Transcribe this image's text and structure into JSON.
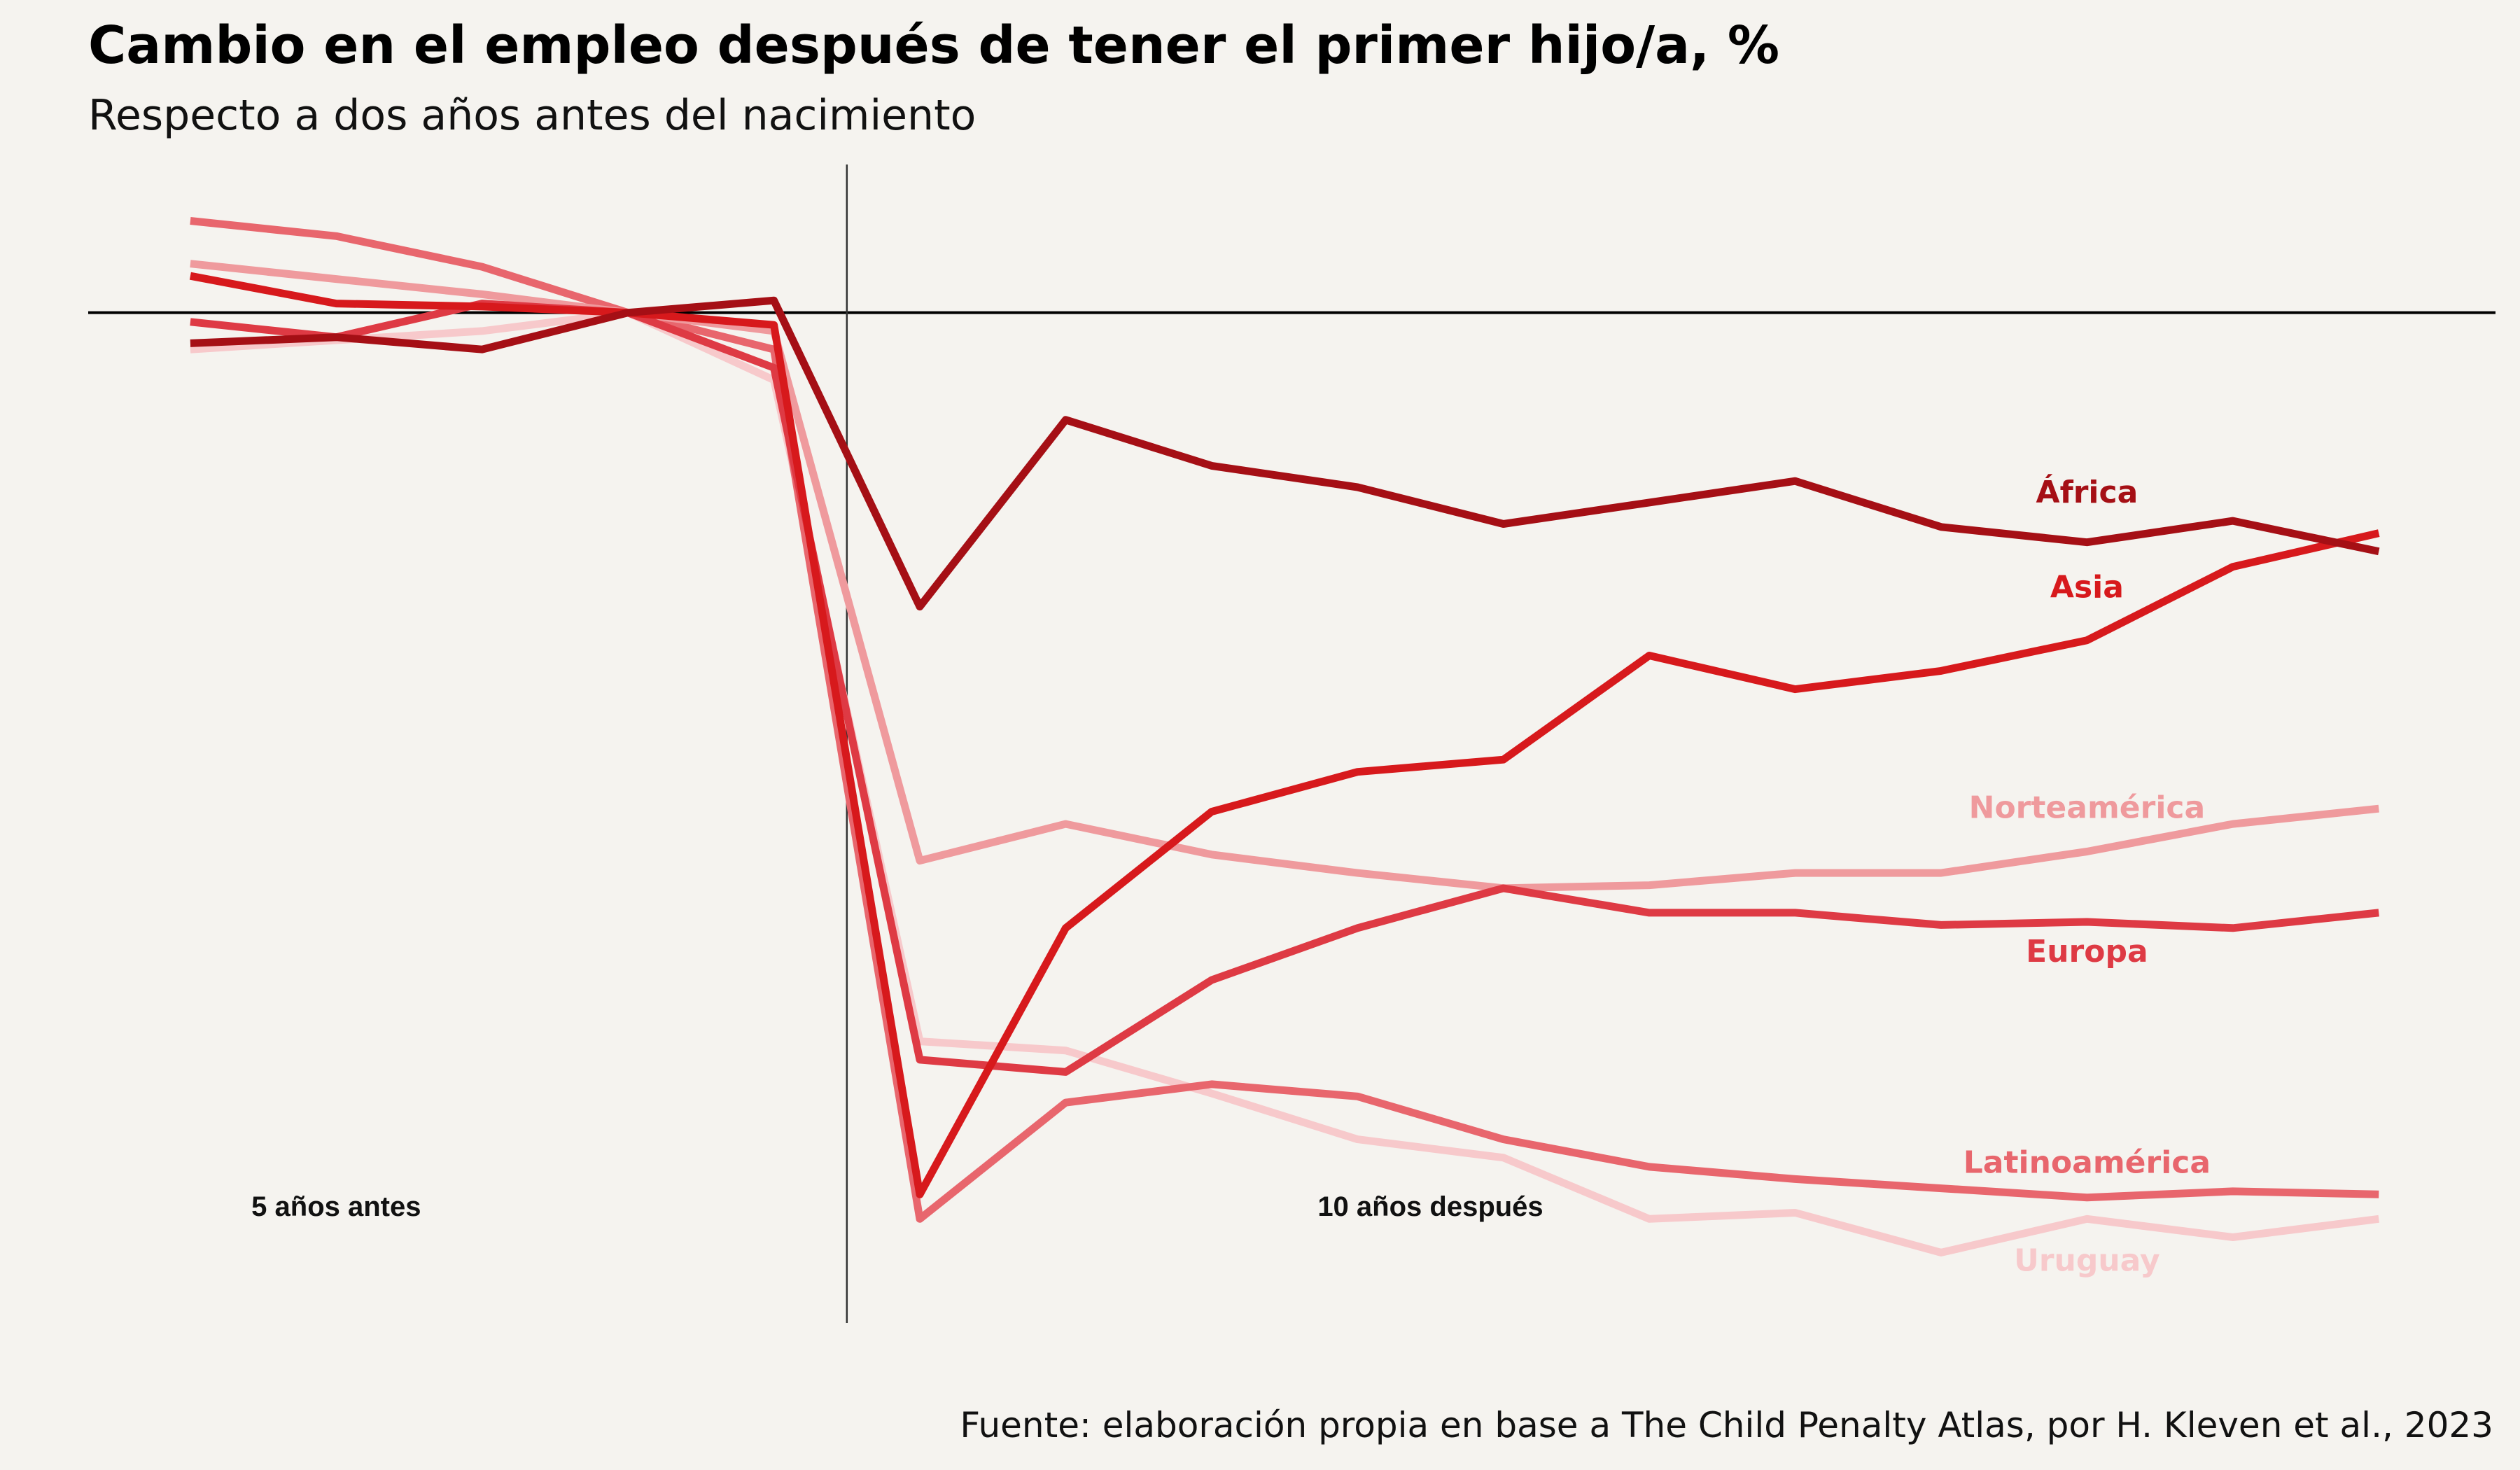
{
  "chart_data": {
    "type": "line",
    "title": "Cambio en el empleo después de tener el primer hijo/a, %",
    "subtitle": "Respecto a dos años antes del nacimiento",
    "source": "Fuente: elaboración propia en base a The Child Penalty Atlas, por H. Kleven et al., 2023",
    "x": [
      -5,
      -4,
      -3,
      -2,
      -1,
      0,
      1,
      2,
      3,
      4,
      5,
      6,
      7,
      8,
      9,
      10
    ],
    "xlim": [
      -5.7,
      10.8
    ],
    "ylim": [
      -33,
      5
    ],
    "baseline": 0,
    "vertical_marker_x": -0.5,
    "grid": false,
    "annotations": [
      {
        "text": "5 años antes",
        "x": -4,
        "y": -29.5
      },
      {
        "text": "10 años después",
        "x": 3.5,
        "y": -29.5
      }
    ],
    "series": [
      {
        "name": "África",
        "color": "#a50f15",
        "values": [
          -1.0,
          -0.8,
          -1.2,
          0.0,
          0.4,
          -9.6,
          -3.5,
          -5.0,
          -5.7,
          -6.9,
          -6.2,
          -5.5,
          -7.0,
          -7.5,
          -6.8,
          -7.8
        ]
      },
      {
        "name": "Asia",
        "color": "#d7191c",
        "values": [
          1.2,
          0.3,
          0.2,
          0.0,
          -0.4,
          -28.8,
          -20.1,
          -16.3,
          -15.0,
          -14.6,
          -11.2,
          -12.3,
          -11.7,
          -10.7,
          -8.3,
          -7.2
        ]
      },
      {
        "name": "Norteamérica",
        "color": "#ef9a9d",
        "values": [
          1.6,
          1.1,
          0.6,
          0.0,
          -0.6,
          -17.9,
          -16.7,
          -17.7,
          -18.3,
          -18.8,
          -18.7,
          -18.3,
          -18.3,
          -17.6,
          -16.7,
          -16.2
        ]
      },
      {
        "name": "Europa",
        "color": "#de3a44",
        "values": [
          -0.3,
          -0.8,
          0.3,
          0.0,
          -1.8,
          -24.4,
          -24.8,
          -21.8,
          -20.1,
          -18.8,
          -19.6,
          -19.6,
          -20.0,
          -19.9,
          -20.1,
          -19.6
        ]
      },
      {
        "name": "Latinoamérica",
        "color": "#e8666d",
        "values": [
          3.0,
          2.5,
          1.5,
          0.0,
          -1.2,
          -29.6,
          -25.8,
          -25.2,
          -25.6,
          -27.0,
          -27.9,
          -28.3,
          -28.6,
          -28.9,
          -28.7,
          -28.8
        ]
      },
      {
        "name": "Uruguay",
        "color": "#f7c9cb",
        "values": [
          -1.2,
          -0.9,
          -0.6,
          0.0,
          -2.2,
          -23.8,
          -24.1,
          -25.5,
          -27.0,
          -27.6,
          -29.6,
          -29.4,
          -30.7,
          -29.6,
          -30.2,
          -29.6
        ]
      }
    ],
    "labels": [
      {
        "series": "África",
        "x": 8,
        "y": -6.2
      },
      {
        "series": "Asia",
        "x": 8,
        "y": -9.3
      },
      {
        "series": "Norteamérica",
        "x": 8,
        "y": -16.5
      },
      {
        "series": "Europa",
        "x": 8,
        "y": -21.2
      },
      {
        "series": "Latinoamérica",
        "x": 8,
        "y": -28.1
      },
      {
        "series": "Uruguay",
        "x": 8,
        "y": -31.3
      }
    ]
  }
}
